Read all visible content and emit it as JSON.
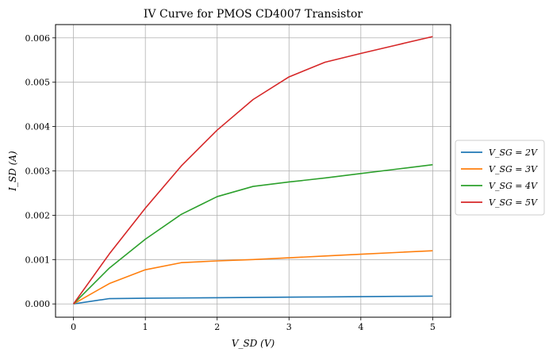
{
  "chart_data": {
    "type": "line",
    "title": "IV Curve for PMOS CD4007 Transistor",
    "xlabel": "V_SD (V)",
    "ylabel": "I_SD (A)",
    "xlim": [
      -0.25,
      5.25
    ],
    "ylim": [
      -0.0003,
      0.0063
    ],
    "x": [
      0,
      0.5,
      1,
      1.5,
      2,
      2.5,
      3,
      3.5,
      4,
      4.5,
      5
    ],
    "xticks": [
      0,
      1,
      2,
      3,
      4,
      5
    ],
    "xtick_labels": [
      "0",
      "1",
      "2",
      "3",
      "4",
      "5"
    ],
    "yticks": [
      0,
      0.001,
      0.002,
      0.003,
      0.004,
      0.005,
      0.006
    ],
    "ytick_labels": [
      "0.000",
      "0.001",
      "0.002",
      "0.003",
      "0.004",
      "0.005",
      "0.006"
    ],
    "grid": true,
    "legend_position": "center-right outside",
    "series": [
      {
        "name": "V_SG = 2V",
        "color": "#1f77b4",
        "values": [
          0,
          0.00012,
          0.000128,
          0.000134,
          0.00014,
          0.000146,
          0.000152,
          0.000158,
          0.000164,
          0.00017,
          0.000176
        ]
      },
      {
        "name": "V_SG = 3V",
        "color": "#ff7f0e",
        "values": [
          0,
          0.00046,
          0.00077,
          0.00093,
          0.00097,
          0.001,
          0.00104,
          0.00108,
          0.00112,
          0.00116,
          0.0012
        ]
      },
      {
        "name": "V_SG = 4V",
        "color": "#2ca02c",
        "values": [
          0,
          0.00081,
          0.00146,
          0.00202,
          0.00242,
          0.00265,
          0.00275,
          0.00284,
          0.00294,
          0.00304,
          0.00314
        ]
      },
      {
        "name": "V_SG = 5V",
        "color": "#d62728",
        "values": [
          0,
          0.00113,
          0.00216,
          0.00311,
          0.00392,
          0.00461,
          0.00512,
          0.00545,
          0.00565,
          0.00584,
          0.00603
        ]
      }
    ]
  }
}
